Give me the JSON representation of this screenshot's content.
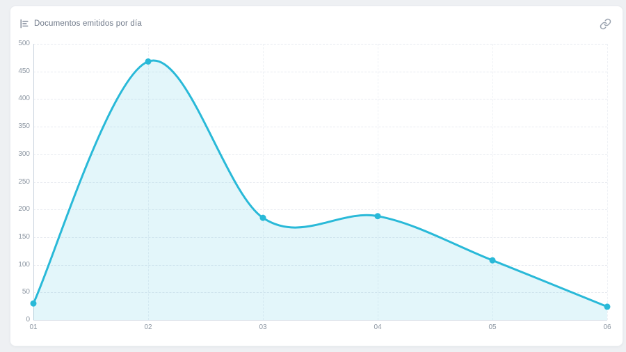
{
  "card": {
    "title": "Documentos emitidos por día",
    "header_icon": "bar-chart-icon",
    "action_icon": "link-icon"
  },
  "chart_data": {
    "type": "area",
    "title": "Documentos emitidos por día",
    "categories": [
      "01",
      "02",
      "03",
      "04",
      "05",
      "06"
    ],
    "values": [
      30,
      468,
      185,
      188,
      108,
      24
    ],
    "series": [
      {
        "name": "Documentos emitidos",
        "values": [
          30,
          468,
          185,
          188,
          108,
          24
        ]
      }
    ],
    "xlabel": "",
    "ylabel": "",
    "ylim": [
      0,
      500
    ],
    "ytick_step": 50,
    "yticks": [
      0,
      50,
      100,
      150,
      200,
      250,
      300,
      350,
      400,
      450,
      500
    ],
    "grid": true,
    "legend": false,
    "smooth": true,
    "line_color": "#29b9d8",
    "point_color": "#29b9d8",
    "fill_color": "rgba(41,185,216,0.13)",
    "axis_color": "#ccd5df",
    "grid_color": "#e7eaf0",
    "tick_label_color": "#8b95a1",
    "card_background": "#ffffff",
    "page_background": "#eef0f3"
  }
}
